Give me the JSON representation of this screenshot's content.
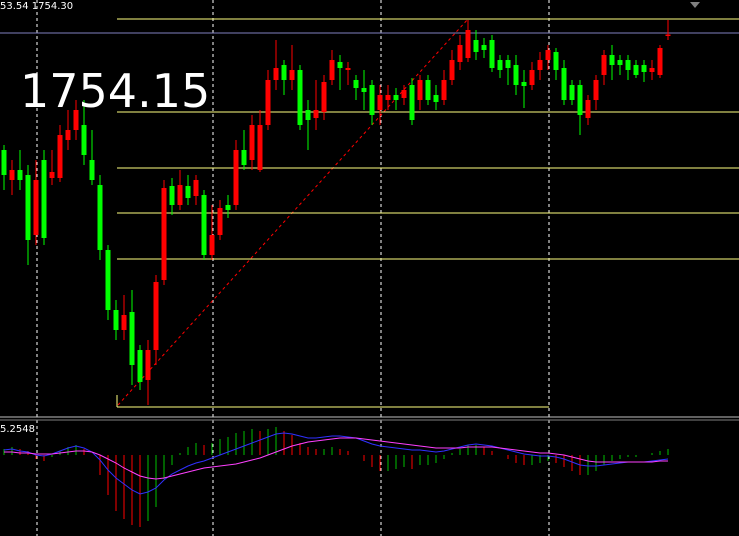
{
  "chart_data": [
    {
      "type": "candlestick",
      "header": "53.54 1754.30",
      "annotation": "1754.15",
      "up_color": "#ff0000",
      "down_color": "#00ff00",
      "level_color": "#ffff80",
      "bid_color": "#8080c0",
      "ylim": [
        1716.1,
        1757.6
      ],
      "levels": [
        1755.7,
        1746.4,
        1740.8,
        1736.3,
        1731.7,
        1716.9
      ],
      "bid_level": 1754.3,
      "open": [
        1742.6,
        1739.6,
        1740.6,
        1740.1,
        1734.1,
        1741.6,
        1739.8,
        1739.8,
        1743.6,
        1744.6,
        1745.1,
        1741.6,
        1739.1,
        1732.6,
        1726.6,
        1724.6,
        1726.4,
        1722.6,
        1719.6,
        1722.6,
        1729.6,
        1739.0,
        1737.1,
        1739.0,
        1738.0,
        1738.1,
        1732.1,
        1734.1,
        1737.1,
        1737.1,
        1742.6,
        1741.6,
        1740.6,
        1745.1,
        1749.6,
        1751.1,
        1749.6,
        1750.6,
        1746.6,
        1745.8,
        1746.4,
        1749.6,
        1751.4,
        1750.6,
        1749.6,
        1748.8,
        1749.1,
        1746.6,
        1747.6,
        1748.1,
        1747.8,
        1749.1,
        1747.6,
        1749.6,
        1748.1,
        1747.6,
        1749.6,
        1751.4,
        1751.8,
        1753.6,
        1753.1,
        1753.6,
        1751.6,
        1751.6,
        1751.1,
        1749.4,
        1749.1,
        1750.6,
        1751.6,
        1752.4,
        1750.8,
        1749.1,
        1749.1,
        1745.8,
        1747.6,
        1750.1,
        1752.1,
        1751.6,
        1751.6,
        1751.1,
        1751.1,
        1750.4,
        1750.1,
        1754.0
      ],
      "high": [
        1743.1,
        1741.6,
        1742.6,
        1741.1,
        1741.6,
        1742.6,
        1742.6,
        1745.1,
        1746.6,
        1747.6,
        1747.6,
        1744.6,
        1740.1,
        1733.1,
        1727.6,
        1728.1,
        1728.6,
        1723.1,
        1723.6,
        1730.1,
        1739.6,
        1739.8,
        1740.6,
        1740.1,
        1740.1,
        1738.6,
        1737.1,
        1737.6,
        1738.1,
        1743.6,
        1744.6,
        1746.1,
        1746.6,
        1750.6,
        1753.6,
        1751.6,
        1753.1,
        1751.1,
        1747.6,
        1749.6,
        1750.1,
        1752.6,
        1752.1,
        1751.4,
        1750.1,
        1750.6,
        1749.6,
        1749.1,
        1749.1,
        1748.8,
        1749.1,
        1749.8,
        1750.1,
        1750.1,
        1749.1,
        1750.6,
        1752.6,
        1754.1,
        1755.6,
        1754.6,
        1753.8,
        1754.1,
        1752.1,
        1752.1,
        1752.1,
        1750.6,
        1751.4,
        1752.4,
        1753.1,
        1752.8,
        1751.6,
        1749.6,
        1749.6,
        1748.1,
        1750.1,
        1752.6,
        1753.1,
        1752.1,
        1752.1,
        1751.6,
        1751.6,
        1751.6,
        1753.1,
        1755.6
      ],
      "low": [
        1738.6,
        1738.1,
        1738.6,
        1731.1,
        1733.1,
        1733.1,
        1739.1,
        1739.4,
        1742.6,
        1743.6,
        1741.1,
        1739.1,
        1731.6,
        1725.6,
        1723.6,
        1723.6,
        1719.1,
        1718.6,
        1717.1,
        1721.1,
        1729.1,
        1736.1,
        1736.6,
        1737.1,
        1737.1,
        1731.6,
        1731.6,
        1733.6,
        1735.8,
        1736.6,
        1740.6,
        1740.6,
        1740.4,
        1744.6,
        1748.6,
        1748.1,
        1748.6,
        1744.6,
        1742.6,
        1744.6,
        1745.6,
        1749.1,
        1748.6,
        1749.1,
        1747.6,
        1746.6,
        1745.1,
        1745.1,
        1746.6,
        1746.6,
        1747.1,
        1745.1,
        1746.6,
        1747.1,
        1746.6,
        1747.1,
        1749.1,
        1750.6,
        1751.4,
        1751.6,
        1751.8,
        1750.4,
        1749.8,
        1749.1,
        1748.1,
        1746.8,
        1748.6,
        1749.6,
        1750.6,
        1749.6,
        1747.1,
        1747.1,
        1744.1,
        1745.1,
        1746.6,
        1749.1,
        1749.6,
        1750.1,
        1749.6,
        1749.8,
        1749.4,
        1749.6,
        1749.8,
        1753.6
      ],
      "close": [
        1740.1,
        1740.6,
        1739.6,
        1733.6,
        1739.6,
        1733.8,
        1740.4,
        1744.1,
        1744.6,
        1746.6,
        1742.1,
        1739.6,
        1732.6,
        1726.6,
        1724.6,
        1726.1,
        1721.1,
        1719.4,
        1722.6,
        1729.4,
        1738.8,
        1737.1,
        1739.1,
        1737.8,
        1739.6,
        1732.1,
        1734.1,
        1736.8,
        1736.6,
        1742.6,
        1741.1,
        1745.1,
        1745.1,
        1749.6,
        1750.8,
        1749.6,
        1750.6,
        1745.1,
        1745.6,
        1746.6,
        1749.4,
        1751.6,
        1750.8,
        1750.8,
        1748.8,
        1748.4,
        1746.1,
        1748.1,
        1748.1,
        1747.6,
        1748.6,
        1745.6,
        1749.6,
        1747.6,
        1747.4,
        1749.6,
        1751.6,
        1753.1,
        1754.6,
        1752.4,
        1752.6,
        1750.8,
        1750.6,
        1750.8,
        1749.1,
        1749.0,
        1750.6,
        1751.6,
        1752.6,
        1750.6,
        1747.6,
        1747.6,
        1746.1,
        1747.6,
        1749.6,
        1752.1,
        1751.1,
        1751.1,
        1750.6,
        1750.1,
        1750.4,
        1750.8,
        1752.8,
        1754.15
      ]
    },
    {
      "type": "macd",
      "label": "5.2548",
      "ylim": [
        -4.05,
        1.75
      ],
      "up_color": "#00c000",
      "down_color": "#ff0000",
      "histogram": [
        0.3,
        0.4,
        0.3,
        0.2,
        -0.2,
        -0.3,
        -0.1,
        0.2,
        0.4,
        0.5,
        0.3,
        0,
        -1.0,
        -2.0,
        -2.8,
        -3.2,
        -3.5,
        -3.6,
        -3.3,
        -2.6,
        -1.2,
        -0.5,
        0.1,
        0.4,
        0.6,
        0.5,
        0.6,
        0.8,
        0.9,
        1.1,
        1.2,
        1.3,
        1.2,
        1.3,
        1.4,
        1.2,
        1.0,
        0.6,
        0.4,
        0.3,
        0.3,
        0.4,
        0.3,
        0.2,
        0,
        -0.3,
        -0.6,
        -0.8,
        -0.8,
        -0.7,
        -0.6,
        -0.7,
        -0.5,
        -0.5,
        -0.4,
        -0.2,
        0.1,
        0.3,
        0.5,
        0.5,
        0.4,
        0.2,
        0,
        -0.2,
        -0.4,
        -0.5,
        -0.5,
        -0.4,
        -0.3,
        -0.4,
        -0.6,
        -0.8,
        -1.0,
        -1.0,
        -0.8,
        -0.5,
        -0.3,
        -0.2,
        -0.1,
        -0.1,
        0,
        0.1,
        0.2,
        0.3
      ],
      "lines": [
        {
          "color": "#3030ff",
          "values": [
            0.25,
            0.3,
            0.2,
            0.15,
            0,
            -0.05,
            0.05,
            0.2,
            0.35,
            0.45,
            0.35,
            0.15,
            -0.25,
            -0.75,
            -1.15,
            -1.45,
            -1.75,
            -1.95,
            -1.85,
            -1.65,
            -1.25,
            -0.95,
            -0.75,
            -0.55,
            -0.4,
            -0.3,
            -0.15,
            0,
            0.15,
            0.3,
            0.45,
            0.6,
            0.75,
            0.9,
            1.05,
            1.1,
            1.05,
            0.95,
            0.85,
            0.85,
            0.9,
            0.95,
            0.95,
            0.9,
            0.85,
            0.7,
            0.55,
            0.45,
            0.4,
            0.35,
            0.3,
            0.25,
            0.25,
            0.2,
            0.15,
            0.2,
            0.3,
            0.4,
            0.5,
            0.55,
            0.5,
            0.45,
            0.35,
            0.25,
            0.15,
            0.05,
            0,
            -0.05,
            -0.05,
            -0.1,
            -0.2,
            -0.35,
            -0.5,
            -0.55,
            -0.55,
            -0.5,
            -0.45,
            -0.4,
            -0.35,
            -0.35,
            -0.35,
            -0.3,
            -0.25,
            -0.2
          ]
        },
        {
          "color": "#ff40ff",
          "values": [
            0.15,
            0.15,
            0.1,
            0.1,
            0.05,
            0.05,
            0.05,
            0.1,
            0.15,
            0.2,
            0.2,
            0.15,
            0,
            -0.2,
            -0.4,
            -0.65,
            -0.85,
            -1.05,
            -1.15,
            -1.2,
            -1.15,
            -1.05,
            -0.95,
            -0.85,
            -0.75,
            -0.65,
            -0.6,
            -0.55,
            -0.5,
            -0.45,
            -0.35,
            -0.25,
            -0.15,
            0,
            0.15,
            0.3,
            0.45,
            0.55,
            0.65,
            0.7,
            0.75,
            0.8,
            0.85,
            0.85,
            0.85,
            0.8,
            0.75,
            0.7,
            0.65,
            0.6,
            0.55,
            0.5,
            0.45,
            0.4,
            0.35,
            0.35,
            0.35,
            0.35,
            0.4,
            0.4,
            0.4,
            0.4,
            0.35,
            0.3,
            0.25,
            0.2,
            0.15,
            0.1,
            0.1,
            0.05,
            0,
            -0.1,
            -0.2,
            -0.3,
            -0.35,
            -0.35,
            -0.35,
            -0.35,
            -0.35,
            -0.35,
            -0.35,
            -0.35,
            -0.3,
            -0.3
          ]
        }
      ]
    }
  ]
}
